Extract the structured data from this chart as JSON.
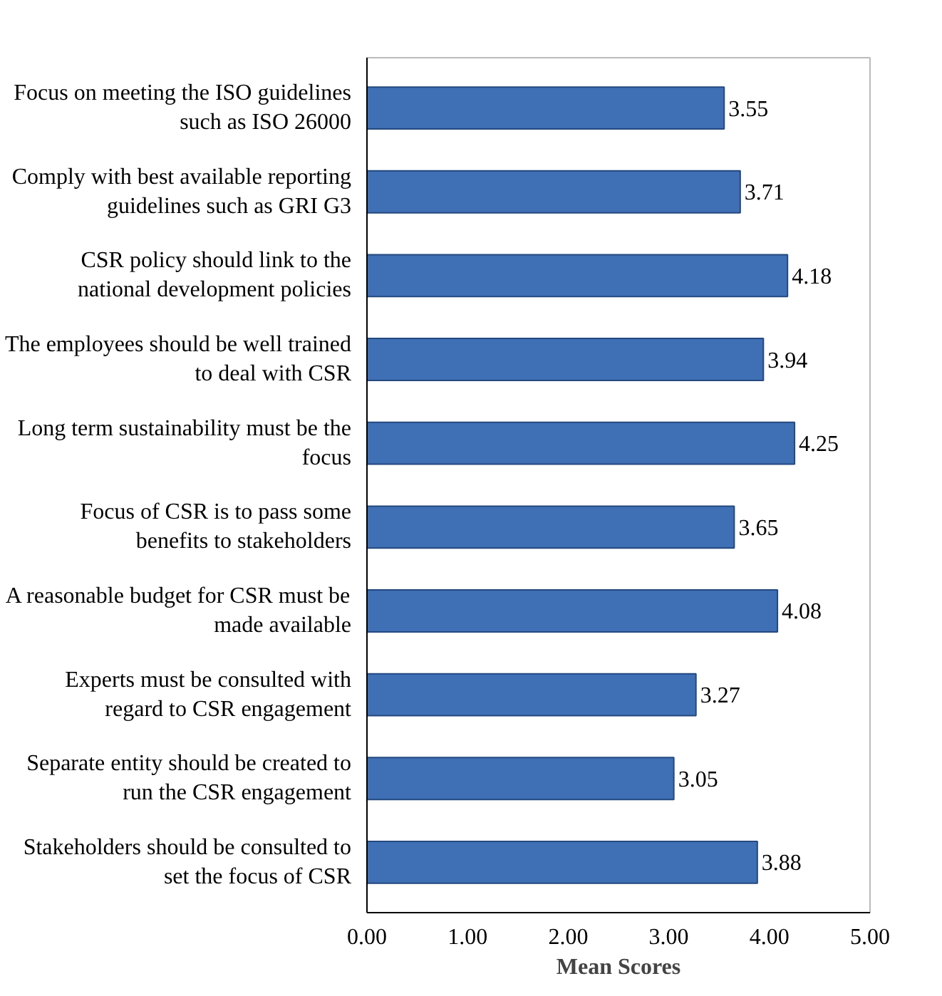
{
  "chart_data": {
    "type": "bar",
    "orientation": "horizontal",
    "xlabel": "Mean Scores",
    "categories": [
      "Focus on meeting the ISO guidelines such as ISO 26000",
      "Comply with best available reporting guidelines such as GRI G3",
      "CSR policy should link to the national development policies",
      "The employees should be well trained to deal with CSR",
      "Long term sustainability must be the focus",
      "Focus of CSR is to pass some benefits to stakeholders",
      "A reasonable budget for CSR must be made available",
      "Experts must be consulted with regard to CSR engagement",
      "Separate entity should be created to run the CSR engagement",
      "Stakeholders should be consulted to set the focus of CSR"
    ],
    "values": [
      3.55,
      3.71,
      4.18,
      3.94,
      4.25,
      3.65,
      4.08,
      3.27,
      3.05,
      3.88
    ],
    "color": "#3f6fb5",
    "data_labels": true,
    "xlim": [
      0,
      5
    ],
    "xticks": [
      {
        "value": 0,
        "label": "0.00"
      },
      {
        "value": 1,
        "label": "1.00"
      },
      {
        "value": 2,
        "label": "2.00"
      },
      {
        "value": 3,
        "label": "3.00"
      },
      {
        "value": 4,
        "label": "4.00"
      },
      {
        "value": 5,
        "label": "5.00"
      }
    ],
    "grid": false
  }
}
